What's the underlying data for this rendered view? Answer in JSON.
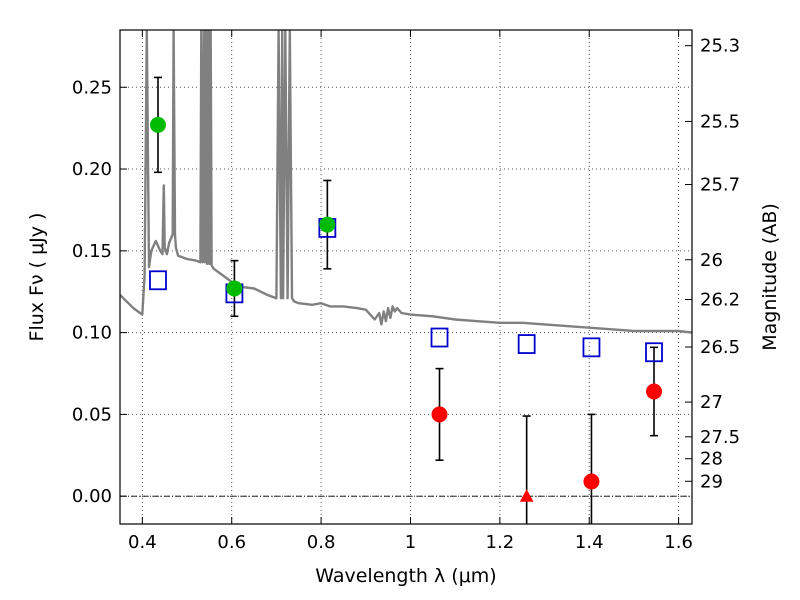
{
  "chart_data": {
    "type": "scatter",
    "xlabel": "Wavelength  λ (μm)",
    "ylabel": "Flux  Fν  ( μJy )",
    "y2label": "Magnitude (AB)",
    "xlim": [
      0.35,
      1.63
    ],
    "ylim": [
      -0.017,
      0.285
    ],
    "grid": true,
    "x_ticks": [
      0.4,
      0.6,
      0.8,
      1.0,
      1.2,
      1.4,
      1.6
    ],
    "x_tick_labels": [
      "0.4",
      "0.6",
      "0.8",
      "1",
      "1.2",
      "1.4",
      "1.6"
    ],
    "y_ticks": [
      0.0,
      0.05,
      0.1,
      0.15,
      0.2,
      0.25
    ],
    "y_tick_labels": [
      "0.00",
      "0.05",
      "0.10",
      "0.15",
      "0.20",
      "0.25"
    ],
    "y2_ticks": [
      25.3,
      25.5,
      25.7,
      26,
      26.2,
      26.5,
      27,
      27.5,
      28,
      29
    ],
    "y2_tick_labels": [
      "25.3",
      "25.5",
      "25.7",
      "26",
      "26.2",
      "26.5",
      "27",
      "27.5",
      "28",
      "29"
    ],
    "series": [
      {
        "marker": "circle",
        "color": "#00bb00",
        "points": [
          {
            "x": 0.435,
            "y": 0.227,
            "err": 0.029
          },
          {
            "x": 0.606,
            "y": 0.127,
            "err": 0.017
          },
          {
            "x": 0.814,
            "y": 0.166,
            "err": 0.027
          }
        ]
      },
      {
        "marker": "circle",
        "color": "#ff0000",
        "points": [
          {
            "x": 1.065,
            "y": 0.05,
            "err": 0.028
          },
          {
            "x": 1.405,
            "y": 0.009,
            "err": 0.041
          },
          {
            "x": 1.545,
            "y": 0.064,
            "err": 0.027
          }
        ]
      },
      {
        "marker": "triangle",
        "color": "#ff0000",
        "points": [
          {
            "x": 1.26,
            "y": 0.0,
            "err_up": 0.049,
            "err_down": 0.049
          }
        ]
      },
      {
        "marker": "open-square",
        "color": "#0000cc",
        "points": [
          {
            "x": 0.435,
            "y": 0.132
          },
          {
            "x": 0.606,
            "y": 0.124
          },
          {
            "x": 0.814,
            "y": 0.164
          },
          {
            "x": 1.065,
            "y": 0.097
          },
          {
            "x": 1.26,
            "y": 0.093
          },
          {
            "x": 1.405,
            "y": 0.091
          },
          {
            "x": 1.545,
            "y": 0.088
          }
        ]
      },
      {
        "marker": "line",
        "color": "#808080",
        "x": [
          0.35,
          0.38,
          0.4,
          0.405,
          0.41,
          0.415,
          0.42,
          0.43,
          0.44,
          0.445,
          0.448,
          0.45,
          0.455,
          0.46,
          0.468,
          0.47,
          0.473,
          0.475,
          0.48,
          0.5,
          0.52,
          0.53,
          0.532,
          0.535,
          0.538,
          0.54,
          0.543,
          0.545,
          0.548,
          0.55,
          0.553,
          0.555,
          0.56,
          0.58,
          0.6,
          0.62,
          0.65,
          0.68,
          0.7,
          0.705,
          0.71,
          0.713,
          0.715,
          0.72,
          0.725,
          0.73,
          0.735,
          0.74,
          0.75,
          0.78,
          0.8,
          0.82,
          0.85,
          0.88,
          0.9,
          0.92,
          0.93,
          0.935,
          0.94,
          0.945,
          0.95,
          0.955,
          0.96,
          0.965,
          0.97,
          0.98,
          1.0,
          1.05,
          1.1,
          1.15,
          1.2,
          1.25,
          1.3,
          1.35,
          1.4,
          1.45,
          1.5,
          1.55,
          1.6,
          1.63
        ],
        "y": [
          0.123,
          0.115,
          0.111,
          0.135,
          0.285,
          0.14,
          0.15,
          0.156,
          0.15,
          0.148,
          0.19,
          0.152,
          0.148,
          0.155,
          0.16,
          0.285,
          0.16,
          0.152,
          0.147,
          0.145,
          0.144,
          0.143,
          0.285,
          0.143,
          0.285,
          0.143,
          0.285,
          0.142,
          0.285,
          0.142,
          0.285,
          0.141,
          0.139,
          0.135,
          0.131,
          0.128,
          0.127,
          0.123,
          0.121,
          0.285,
          0.121,
          0.285,
          0.121,
          0.285,
          0.121,
          0.285,
          0.121,
          0.119,
          0.118,
          0.117,
          0.118,
          0.116,
          0.116,
          0.115,
          0.114,
          0.108,
          0.112,
          0.105,
          0.113,
          0.107,
          0.115,
          0.109,
          0.116,
          0.113,
          0.115,
          0.112,
          0.111,
          0.11,
          0.108,
          0.107,
          0.106,
          0.106,
          0.105,
          0.104,
          0.103,
          0.102,
          0.101,
          0.101,
          0.101,
          0.1
        ]
      }
    ]
  }
}
